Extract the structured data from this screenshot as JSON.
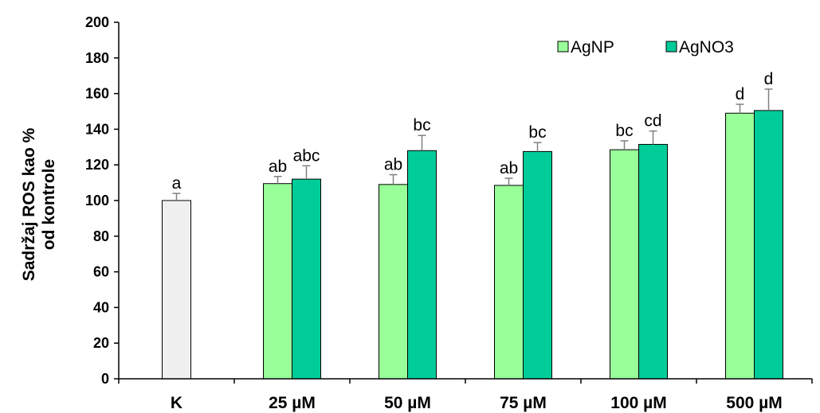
{
  "chart_data": {
    "type": "bar",
    "ylabel_line1": "Sadržaj ROS kao %",
    "ylabel_line2": "od kontrole",
    "ylim": [
      0,
      200
    ],
    "yticks": [
      "0",
      "20",
      "40",
      "60",
      "80",
      "100",
      "120",
      "140",
      "160",
      "180",
      "200"
    ],
    "categories": [
      "K",
      "25 µM",
      "50 µM",
      "75 µM",
      "100 µM",
      "500 µM"
    ],
    "legend": {
      "placement": "top-right"
    },
    "control": {
      "category": "K",
      "value": 100,
      "error": 4,
      "sig": "a",
      "color": "#f0f0f0"
    },
    "series": [
      {
        "name": "AgNP",
        "color": "#99ff99",
        "values": [
          null,
          109.5,
          109,
          108.5,
          128.5,
          149
        ],
        "errors": [
          null,
          4,
          5.5,
          4,
          5,
          5
        ],
        "sig": [
          null,
          "ab",
          "ab",
          "ab",
          "bc",
          "d"
        ]
      },
      {
        "name": "AgNO3",
        "color": "#00cc99",
        "values": [
          null,
          112,
          128,
          127.5,
          131.5,
          150.5
        ],
        "errors": [
          null,
          7.5,
          8.5,
          5,
          7.5,
          12
        ],
        "sig": [
          null,
          "abc",
          "bc",
          "bc",
          "cd",
          "d"
        ]
      }
    ]
  }
}
